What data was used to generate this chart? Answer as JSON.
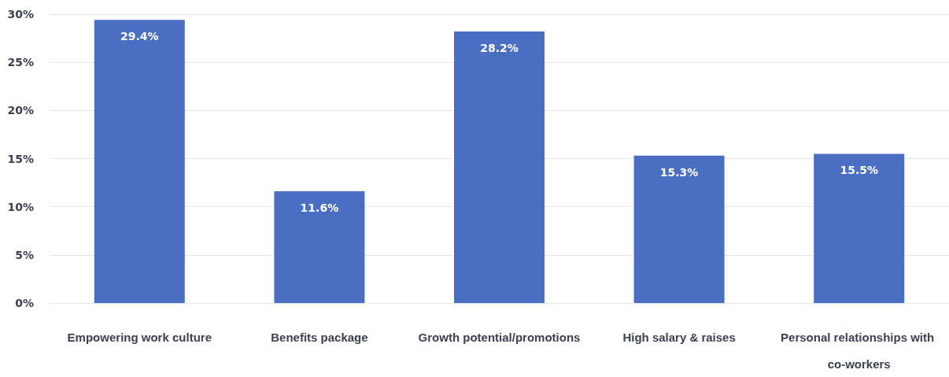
{
  "chart_data": {
    "type": "bar",
    "categories": [
      "Empowering work culture",
      "Benefits package",
      "Growth potential/promotions",
      "High salary & raises",
      "Personal relationships with co-workers"
    ],
    "values": [
      29.4,
      11.6,
      28.2,
      15.3,
      15.5
    ],
    "value_labels": [
      "29.4%",
      "11.6%",
      "28.2%",
      "15.3%",
      "15.5%"
    ],
    "color": "#4a6fc2",
    "ylim": [
      0,
      30
    ],
    "yticks": [
      {
        "value": 0,
        "label": "0%"
      },
      {
        "value": 5,
        "label": "5%"
      },
      {
        "value": 10,
        "label": "10%"
      },
      {
        "value": 15,
        "label": "15%"
      },
      {
        "value": 20,
        "label": "20%"
      },
      {
        "value": 25,
        "label": "25%"
      },
      {
        "value": 30,
        "label": "30%"
      }
    ],
    "grid": "y"
  }
}
